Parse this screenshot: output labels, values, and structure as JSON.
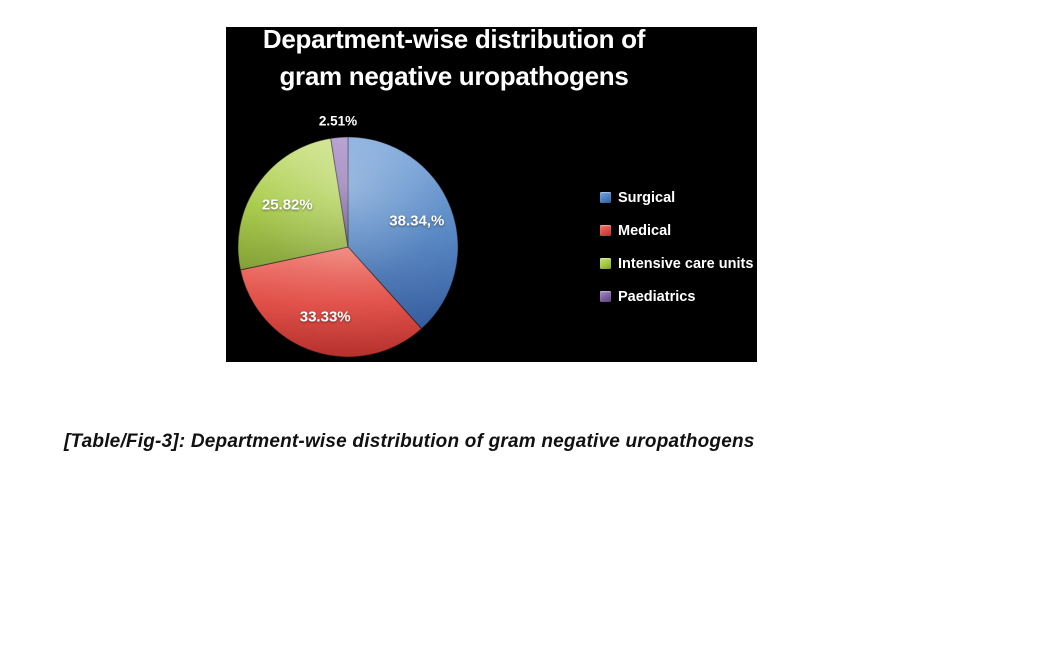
{
  "caption": "[Table/Fig-3]: Department-wise distribution of gram negative uropathogens",
  "chart_data": {
    "type": "pie",
    "title": "Department-wise distribution of gram negative uropathogens",
    "title_lines": [
      "Department-wise distribution of",
      "gram negative uropathogens"
    ],
    "background": "#000000",
    "text_color": "#ffffff",
    "legend_position": "right",
    "start_angle_deg": 0,
    "direction": "clockwise",
    "slices": [
      {
        "label": "Surgical",
        "value": 38.34,
        "display_label": "38.34,%",
        "color": "#4d80c0",
        "color_light": "#76a3da",
        "color_dark": "#32599b"
      },
      {
        "label": "Medical",
        "value": 33.33,
        "display_label": "33.33%",
        "color": "#e04a42",
        "color_light": "#ef766c",
        "color_dark": "#b52f2b"
      },
      {
        "label": "Intensive care units",
        "value": 25.82,
        "display_label": "25.82%",
        "color": "#a3c83f",
        "color_light": "#c8e07a",
        "color_dark": "#7d9c2d"
      },
      {
        "label": "Paediatrics",
        "value": 2.51,
        "display_label": "2.51%",
        "color": "#7d5fa4",
        "color_light": "#a88bcb",
        "color_dark": "#5a4279"
      }
    ]
  }
}
